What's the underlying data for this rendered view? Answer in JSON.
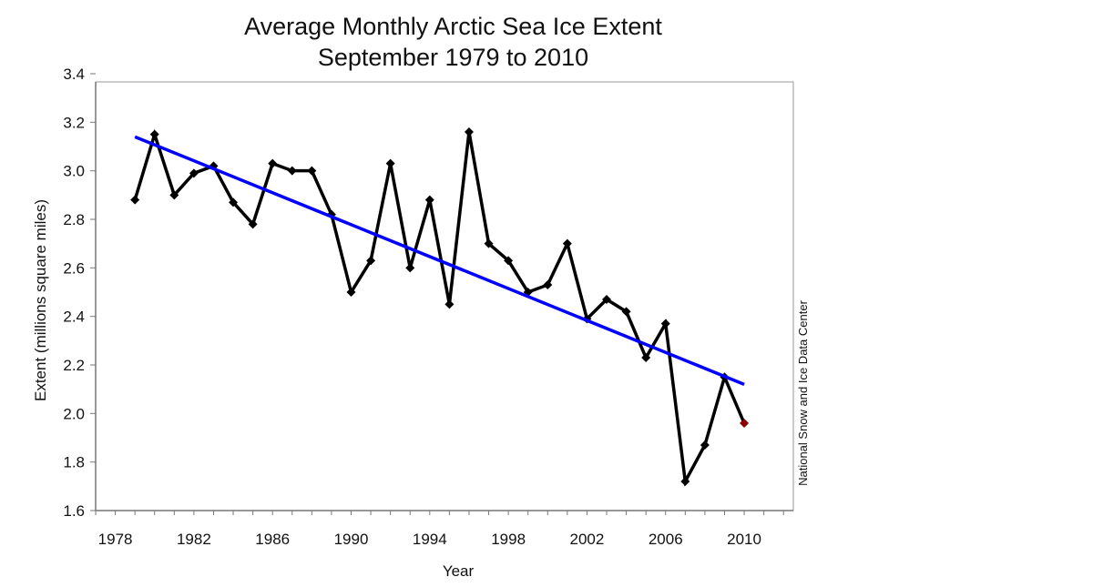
{
  "chart_data": {
    "type": "line",
    "title": "Average Monthly Arctic Sea Ice Extent",
    "subtitle": "September 1979 to 2010",
    "xlabel": "Year",
    "ylabel": "Extent (millions square miles)",
    "source": "National Snow and Ice Data Center",
    "xlim": [
      1977,
      2012.5
    ],
    "ylim": [
      1.6,
      3.4
    ],
    "xticks": [
      1978,
      1982,
      1986,
      1990,
      1994,
      1998,
      2002,
      2006,
      2010
    ],
    "yticks": [
      "1.6",
      "1.8",
      "2.0",
      "2.2",
      "2.4",
      "2.6",
      "2.8",
      "3.0",
      "3.2",
      "3.4"
    ],
    "grid": false,
    "x": [
      1979,
      1980,
      1981,
      1982,
      1983,
      1984,
      1985,
      1986,
      1987,
      1988,
      1989,
      1990,
      1991,
      1992,
      1993,
      1994,
      1995,
      1996,
      1997,
      1998,
      1999,
      2000,
      2001,
      2002,
      2003,
      2004,
      2005,
      2006,
      2007,
      2008,
      2009,
      2010
    ],
    "series": [
      {
        "values": [
          2.88,
          3.15,
          2.9,
          2.99,
          3.02,
          2.87,
          2.78,
          3.03,
          3.0,
          3.0,
          2.82,
          2.5,
          2.63,
          3.03,
          2.6,
          2.88,
          2.45,
          3.16,
          2.7,
          2.63,
          2.5,
          2.53,
          2.7,
          2.39,
          2.47,
          2.42,
          2.23,
          2.37,
          1.72,
          1.87,
          2.15,
          1.96
        ],
        "color": "#000000",
        "highlight_last_color": "#8b0000"
      }
    ],
    "trend": {
      "x": [
        1979,
        2010
      ],
      "y": [
        3.14,
        2.12
      ],
      "color": "#0000ff"
    }
  }
}
